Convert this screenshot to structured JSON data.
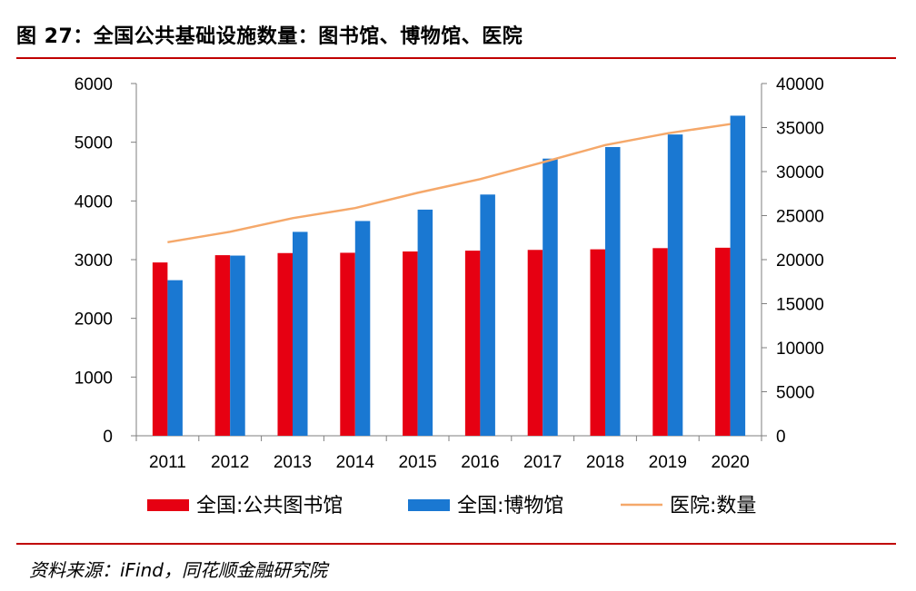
{
  "header": {
    "title": "图 27：全国公共基础设施数量：图书馆、博物馆、医院"
  },
  "footer": {
    "source": "资料来源：iFind，同花顺金融研究院"
  },
  "colors": {
    "library": "#e60012",
    "museum": "#1a78d2",
    "hospital": "#f5a86a",
    "accent_rule": "#c00000"
  },
  "chart_data": {
    "type": "bar",
    "title": "图 27：全国公共基础设施数量：图书馆、博物馆、医院",
    "categories": [
      "2011",
      "2012",
      "2013",
      "2014",
      "2015",
      "2016",
      "2017",
      "2018",
      "2019",
      "2020"
    ],
    "series": [
      {
        "name": "全国:公共图书馆",
        "type": "bar",
        "axis": "left",
        "values": [
          2952,
          3076,
          3112,
          3117,
          3139,
          3153,
          3166,
          3176,
          3196,
          3203
        ]
      },
      {
        "name": "全国:博物馆",
        "type": "bar",
        "axis": "left",
        "values": [
          2650,
          3069,
          3473,
          3658,
          3852,
          4109,
          4721,
          4918,
          5132,
          5452
        ]
      },
      {
        "name": "医院:数量",
        "type": "line",
        "axis": "right",
        "values": [
          21979,
          23170,
          24709,
          25860,
          27587,
          29140,
          31056,
          33009,
          34354,
          35394
        ]
      }
    ],
    "ylim": [
      0,
      6000
    ],
    "yticks": [
      "0",
      "1000",
      "2000",
      "3000",
      "4000",
      "5000",
      "6000"
    ],
    "y2lim": [
      0,
      40000
    ],
    "y2ticks": [
      "0",
      "5000",
      "10000",
      "15000",
      "20000",
      "25000",
      "30000",
      "35000",
      "40000"
    ],
    "xlabel": "",
    "ylabel": "",
    "y2label": "",
    "legend": [
      "全国:公共图书馆",
      "全国:博物馆",
      "医院:数量"
    ],
    "legend_position": "bottom",
    "grid": false
  }
}
